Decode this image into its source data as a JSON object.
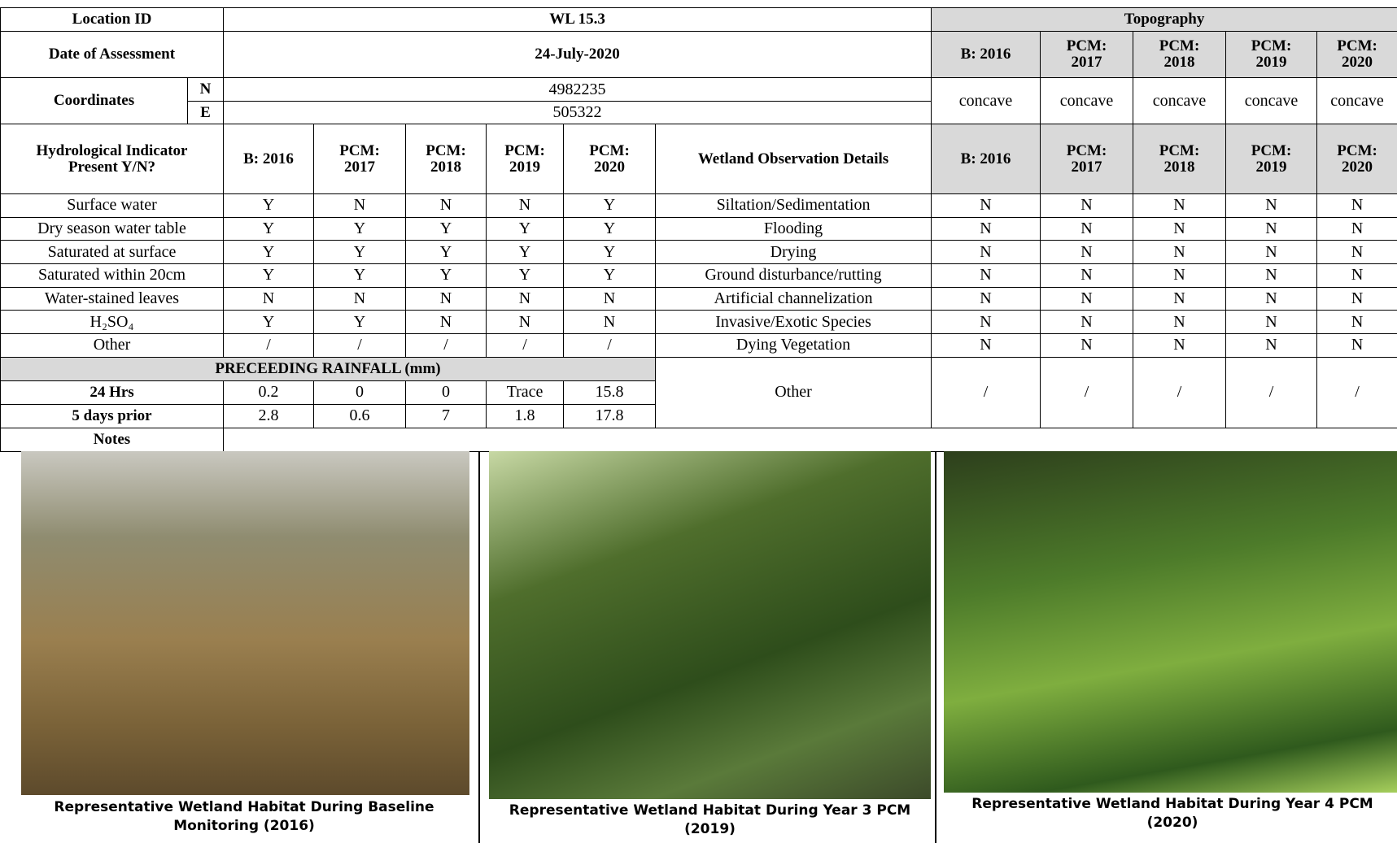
{
  "header": {
    "location_label": "Location ID",
    "location_id": "WL 15.3",
    "date_label": "Date of Assessment",
    "date": "24-July-2020",
    "coord_label": "Coordinates",
    "n_label": "N",
    "n_value": "4982235",
    "e_label": "E",
    "e_value": "505322",
    "topography_label": "Topography",
    "topography_years": [
      "B: 2016",
      "PCM: 2017",
      "PCM: 2018",
      "PCM: 2019",
      "PCM: 2020"
    ],
    "topography": [
      "concave",
      "concave",
      "concave",
      "concave",
      "concave"
    ]
  },
  "hydro": {
    "label": "Hydrological Indicator Present Y/N?",
    "years": [
      "B: 2016",
      "PCM: 2017",
      "PCM: 2018",
      "PCM: 2019",
      "PCM: 2020"
    ],
    "obs_label": "Wetland Observation Details",
    "obs_years": [
      "B: 2016",
      "PCM: 2017",
      "PCM: 2018",
      "PCM: 2019",
      "PCM: 2020"
    ],
    "rows": [
      {
        "indicator": "Surface water",
        "values": [
          "Y",
          "N",
          "N",
          "N",
          "Y"
        ],
        "observation": "Siltation/Sedimentation",
        "obs_values": [
          "N",
          "N",
          "N",
          "N",
          "N"
        ]
      },
      {
        "indicator": "Dry season water table",
        "values": [
          "Y",
          "Y",
          "Y",
          "Y",
          "Y"
        ],
        "observation": "Flooding",
        "obs_values": [
          "N",
          "N",
          "N",
          "N",
          "N"
        ]
      },
      {
        "indicator": "Saturated at surface",
        "values": [
          "Y",
          "Y",
          "Y",
          "Y",
          "Y"
        ],
        "observation": "Drying",
        "obs_values": [
          "N",
          "N",
          "N",
          "N",
          "N"
        ]
      },
      {
        "indicator": "Saturated within 20cm",
        "values": [
          "Y",
          "Y",
          "Y",
          "Y",
          "Y"
        ],
        "observation": "Ground disturbance/rutting",
        "obs_values": [
          "N",
          "N",
          "N",
          "N",
          "N"
        ]
      },
      {
        "indicator": "Water-stained leaves",
        "values": [
          "N",
          "N",
          "N",
          "N",
          "N"
        ],
        "observation": "Artificial channelization",
        "obs_values": [
          "N",
          "N",
          "N",
          "N",
          "N"
        ]
      },
      {
        "indicator": "H₂SO₄",
        "values": [
          "Y",
          "Y",
          "N",
          "N",
          "N"
        ],
        "observation": "Invasive/Exotic Species",
        "obs_values": [
          "N",
          "N",
          "N",
          "N",
          "N"
        ]
      },
      {
        "indicator": "Other",
        "values": [
          "/",
          "/",
          "/",
          "/",
          "/"
        ],
        "observation": "Dying Vegetation",
        "obs_values": [
          "N",
          "N",
          "N",
          "N",
          "N"
        ]
      }
    ]
  },
  "rainfall": {
    "label": "PRECEEDING RAINFALL (mm)",
    "rows": [
      {
        "label": "24 Hrs",
        "values": [
          0.2,
          0,
          0,
          "Trace",
          15.8
        ]
      },
      {
        "label": "5 days prior",
        "values": [
          2.8,
          0.6,
          7,
          1.8,
          17.8
        ]
      }
    ]
  },
  "other_obs": {
    "name": "Other",
    "values": [
      "/",
      "/",
      "/",
      "/",
      "/"
    ]
  },
  "notes_label": "Notes",
  "photos": [
    {
      "caption": "Representative Wetland Habitat During Baseline Monitoring (2016)"
    },
    {
      "caption": "Representative Wetland Habitat During Year 3 PCM (2019)"
    },
    {
      "caption": "Representative Wetland Habitat During Year 4 PCM (2020)"
    }
  ]
}
